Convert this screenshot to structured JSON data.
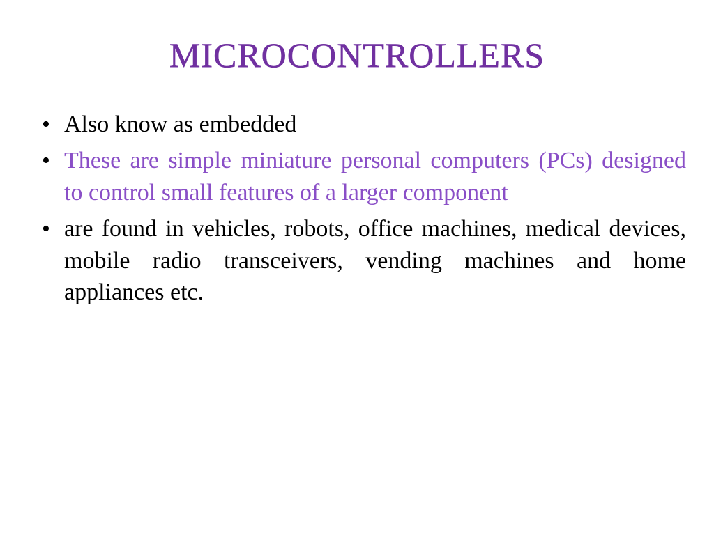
{
  "slide": {
    "title": "Microcontrollers",
    "title_color": "#7030a0",
    "title_fontsize": 50,
    "background_color": "#ffffff",
    "bullets": [
      {
        "text": "Also know as embedded",
        "color": "#000000",
        "highlighted": false
      },
      {
        "text": "These are simple miniature personal computers (PCs) designed to control small features of a larger component",
        "color": "#8a4fc7",
        "highlighted": true
      },
      {
        "text": "are found in vehicles, robots, office machines, medical devices, mobile radio transceivers, vending machines and home appliances etc.",
        "color": "#000000",
        "highlighted": false
      }
    ],
    "body_fontsize": 34,
    "purple_accent": "#8a4fc7",
    "body_text_color": "#000000"
  }
}
